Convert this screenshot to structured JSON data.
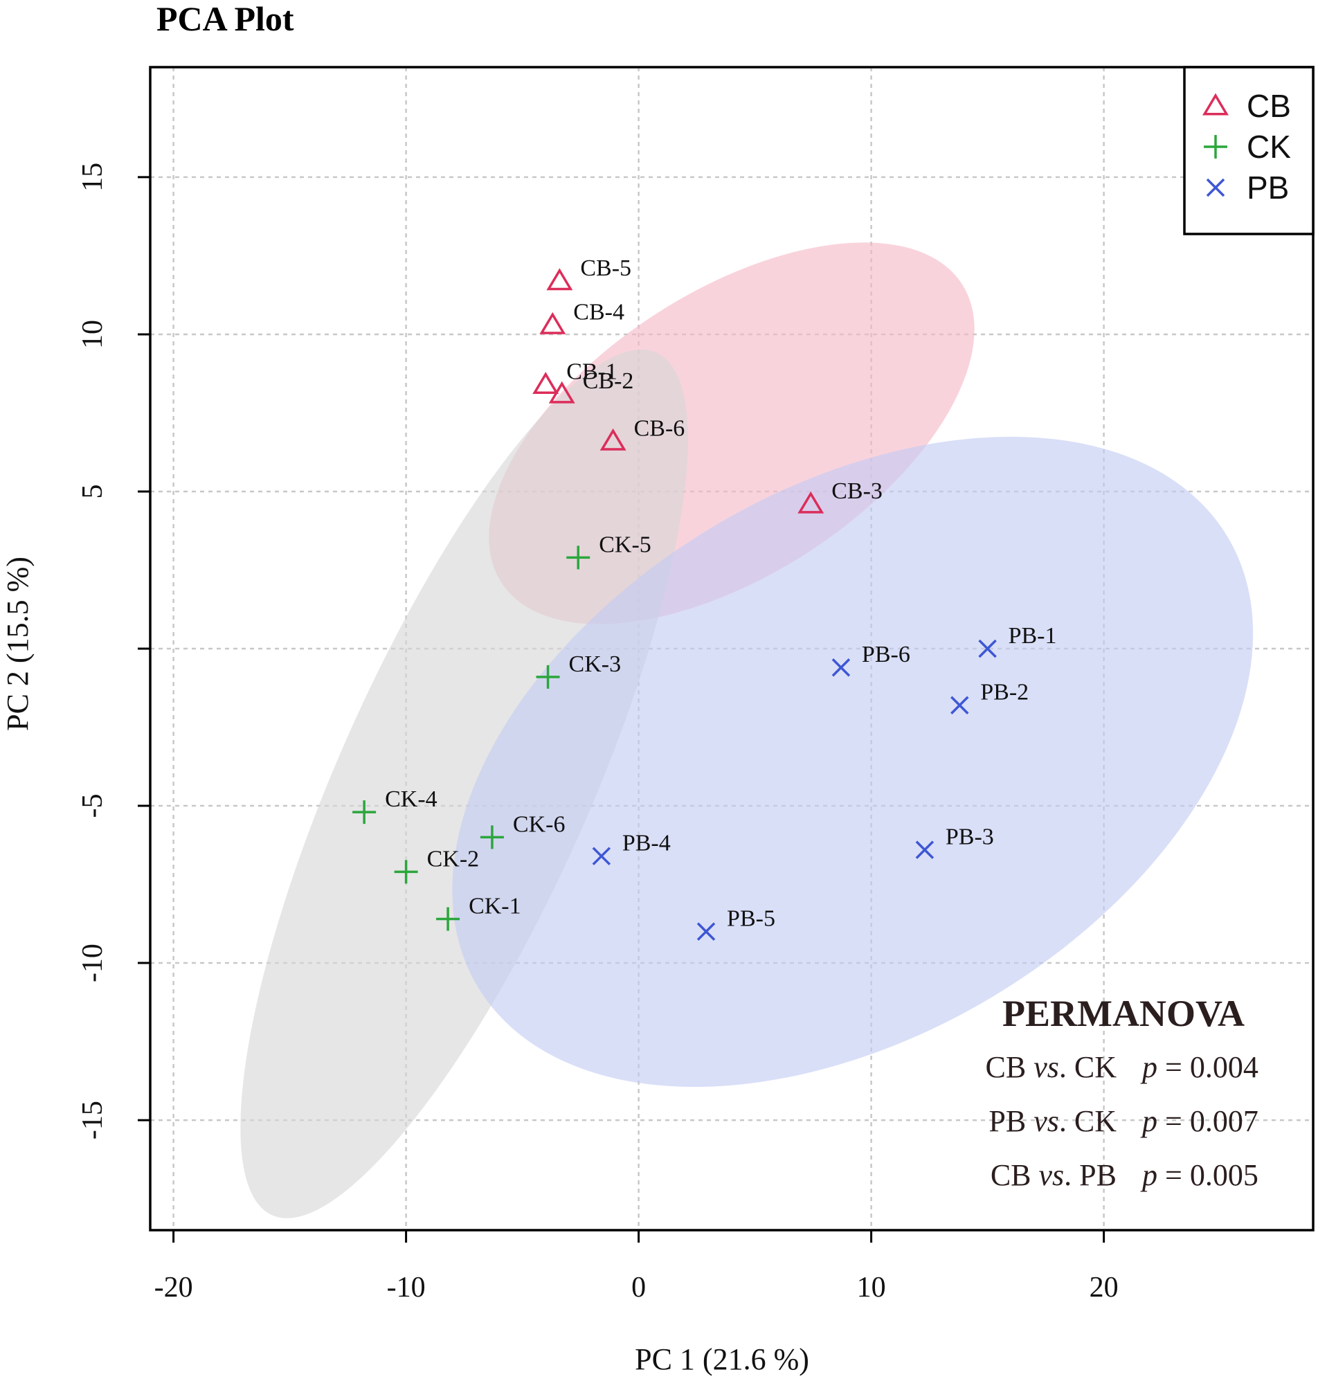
{
  "chart_data": {
    "type": "scatter",
    "title": "PCA Plot",
    "xlabel": "PC 1 (21.6 %)",
    "ylabel": "PC 2 (15.5 %)",
    "xlim": [
      -21,
      29
    ],
    "ylim": [
      -18.5,
      18.5
    ],
    "xticks": [
      -20,
      -10,
      0,
      10,
      20
    ],
    "yticks": [
      -15,
      -10,
      -5,
      0,
      5,
      10,
      15
    ],
    "yticks_labeled": [
      -15,
      -10,
      -5,
      5,
      10,
      15
    ],
    "grid": true,
    "legend_position": "top-right",
    "series": [
      {
        "name": "CB",
        "marker": "triangle",
        "color": "#dc2d5a",
        "fill": "#f5b8c6",
        "ellipse": {
          "center": [
            4.0,
            6.85
          ],
          "rx": 11.8,
          "ry": 4.5,
          "angle_deg": -33
        },
        "points": [
          {
            "label": "CB-1",
            "x": -4.0,
            "y": 8.4
          },
          {
            "label": "CB-2",
            "x": -3.3,
            "y": 8.1
          },
          {
            "label": "CB-3",
            "x": 7.4,
            "y": 4.6
          },
          {
            "label": "CB-4",
            "x": -3.7,
            "y": 10.3
          },
          {
            "label": "CB-5",
            "x": -3.4,
            "y": 11.7
          },
          {
            "label": "CB-6",
            "x": -1.1,
            "y": 6.6
          }
        ]
      },
      {
        "name": "CK",
        "marker": "plus",
        "color": "#2ba63c",
        "fill": "#d6d6d6",
        "ellipse": {
          "center": [
            -7.5,
            -4.3
          ],
          "rx": 20.3,
          "ry": 4.0,
          "angle_deg": -66
        },
        "points": [
          {
            "label": "CK-1",
            "x": -8.2,
            "y": -8.6
          },
          {
            "label": "CK-2",
            "x": -10.0,
            "y": -7.1
          },
          {
            "label": "CK-3",
            "x": -3.9,
            "y": -0.9
          },
          {
            "label": "CK-4",
            "x": -11.8,
            "y": -5.2
          },
          {
            "label": "CK-5",
            "x": -2.6,
            "y": 2.9
          },
          {
            "label": "CK-6",
            "x": -6.3,
            "y": -6.0
          }
        ]
      },
      {
        "name": "PB",
        "marker": "x",
        "color": "#3d57d4",
        "fill": "#c3cbf3",
        "ellipse": {
          "center": [
            9.2,
            -3.6
          ],
          "rx": 18.8,
          "ry": 8.7,
          "angle_deg": -31
        },
        "points": [
          {
            "label": "PB-1",
            "x": 15.0,
            "y": 0.0
          },
          {
            "label": "PB-2",
            "x": 13.8,
            "y": -1.8
          },
          {
            "label": "PB-3",
            "x": 12.3,
            "y": -6.4
          },
          {
            "label": "PB-4",
            "x": -1.6,
            "y": -6.6
          },
          {
            "label": "PB-5",
            "x": 2.9,
            "y": -9.0
          },
          {
            "label": "PB-6",
            "x": 8.7,
            "y": -0.6
          }
        ]
      }
    ],
    "annotation": {
      "title": "PERMANOVA",
      "rows": [
        {
          "group_a": "CB",
          "vs": "vs",
          "group_b": "CK",
          "p_symbol": "p",
          "p_value": "= 0.004"
        },
        {
          "group_a": "PB",
          "vs": "vs",
          "group_b": "CK",
          "p_symbol": "p",
          "p_value": "= 0.007"
        },
        {
          "group_a": "CB",
          "vs": "vs",
          "group_b": "PB",
          "p_symbol": "p",
          "p_value": "= 0.005"
        }
      ]
    }
  }
}
